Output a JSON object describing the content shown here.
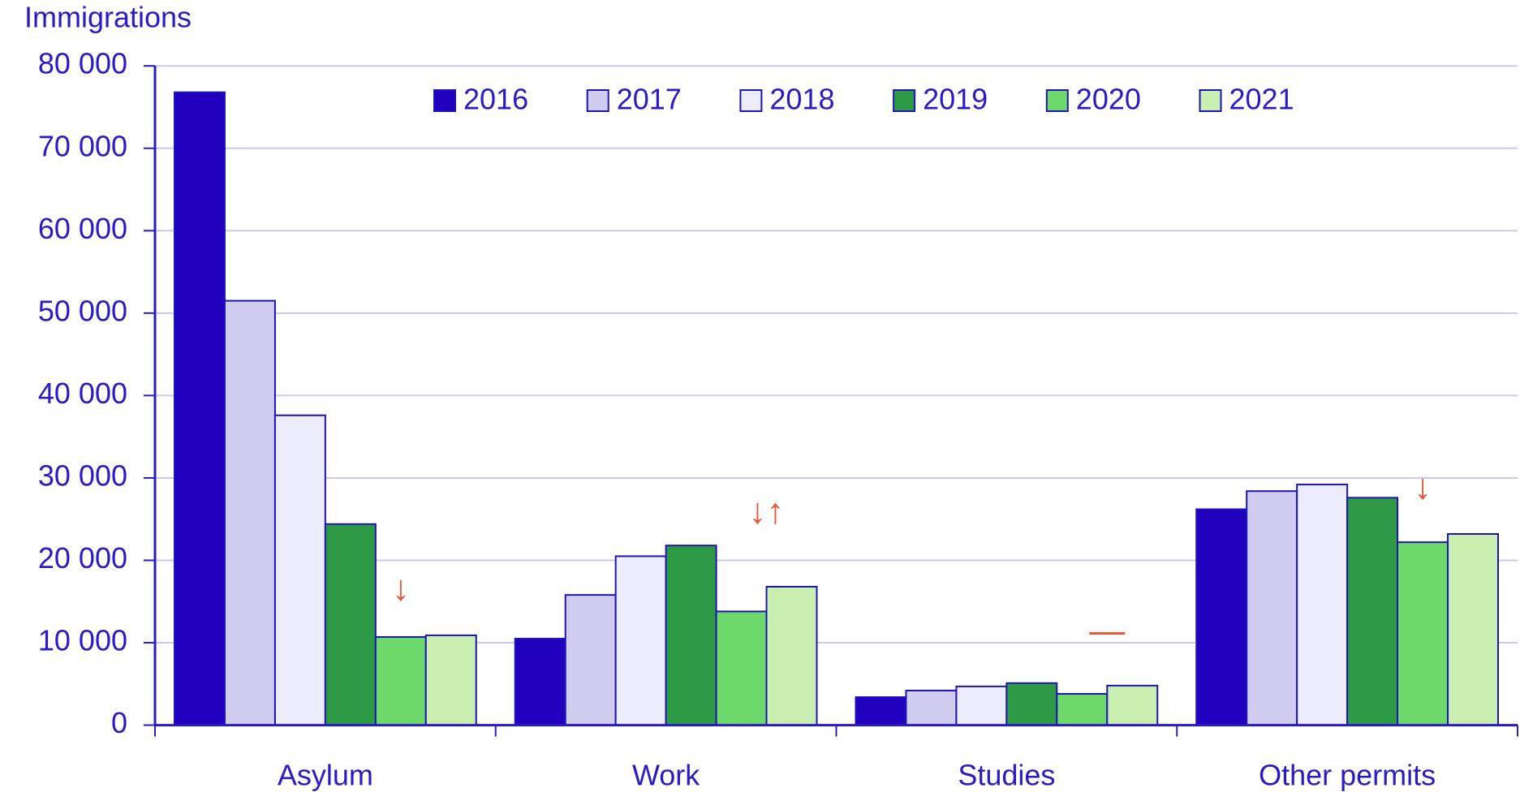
{
  "chart_data": {
    "type": "bar",
    "y_label": "Immigrations",
    "categories": [
      "Asylum",
      "Work",
      "Studies",
      "Other permits"
    ],
    "series": [
      {
        "name": "2016",
        "color": "#2200c0",
        "values": [
          76800,
          10500,
          3400,
          26200
        ]
      },
      {
        "name": "2017",
        "color": "#d0ccf0",
        "values": [
          51500,
          15800,
          4200,
          28400
        ]
      },
      {
        "name": "2018",
        "color": "#ececfc",
        "values": [
          37600,
          20500,
          4700,
          29200
        ]
      },
      {
        "name": "2019",
        "color": "#2f9a45",
        "values": [
          24400,
          21800,
          5100,
          27600
        ]
      },
      {
        "name": "2020",
        "color": "#6dd96a",
        "values": [
          10700,
          13800,
          3800,
          22200
        ]
      },
      {
        "name": "2021",
        "color": "#c8eeb0",
        "values": [
          10900,
          16800,
          4800,
          23200
        ]
      }
    ],
    "ylim": [
      0,
      80000
    ],
    "yticks": [
      0,
      {
        "value": 10000,
        "label": "10 000"
      },
      {
        "value": 20000,
        "label": "20 000"
      },
      {
        "value": 30000,
        "label": "30 000"
      },
      {
        "value": 40000,
        "label": "40 000"
      },
      {
        "value": 50000,
        "label": "50 000"
      },
      {
        "value": 60000,
        "label": "60 000"
      },
      {
        "value": 70000,
        "label": "70 000"
      },
      {
        "value": 80000,
        "label": "80 000"
      }
    ],
    "grid": true,
    "legend": "top",
    "annotations": [
      "↓",
      "↓↑",
      "—",
      "↓"
    ],
    "annotation_color": "#ea5436"
  }
}
